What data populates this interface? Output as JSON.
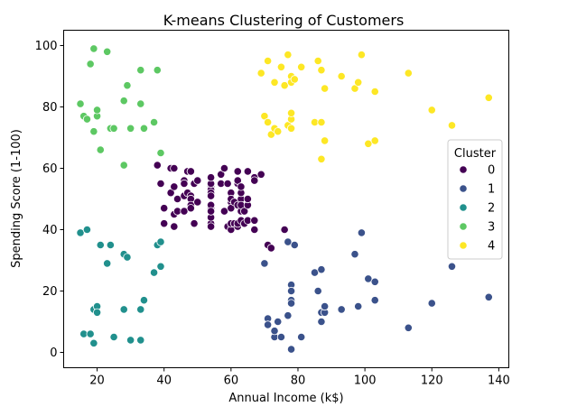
{
  "chart_data": {
    "type": "scatter",
    "title": "K-means Clustering of Customers",
    "xlabel": "Annual Income (k$)",
    "ylabel": "Spending Score (1-100)",
    "xlim": [
      10,
      143
    ],
    "ylim": [
      -5,
      105
    ],
    "xticks": [
      20,
      40,
      60,
      80,
      100,
      120,
      140
    ],
    "yticks": [
      0,
      20,
      40,
      60,
      80,
      100
    ],
    "grid": false,
    "legend": {
      "title": "Cluster",
      "placement": "center-right"
    },
    "series": [
      {
        "name": "0",
        "color": "#440154",
        "points": [
          [
            38,
            61
          ],
          [
            39,
            55
          ],
          [
            40,
            47
          ],
          [
            40,
            42
          ],
          [
            40,
            42
          ],
          [
            42,
            52
          ],
          [
            42,
            60
          ],
          [
            43,
            54
          ],
          [
            43,
            60
          ],
          [
            43,
            45
          ],
          [
            43,
            41
          ],
          [
            44,
            50
          ],
          [
            44,
            46
          ],
          [
            46,
            51
          ],
          [
            46,
            46
          ],
          [
            46,
            56
          ],
          [
            46,
            55
          ],
          [
            47,
            52
          ],
          [
            47,
            59
          ],
          [
            48,
            51
          ],
          [
            48,
            59
          ],
          [
            48,
            50
          ],
          [
            48,
            48
          ],
          [
            48,
            59
          ],
          [
            48,
            47
          ],
          [
            49,
            55
          ],
          [
            49,
            42
          ],
          [
            50,
            49
          ],
          [
            50,
            56
          ],
          [
            54,
            47
          ],
          [
            54,
            54
          ],
          [
            54,
            53
          ],
          [
            54,
            48
          ],
          [
            54,
            52
          ],
          [
            54,
            42
          ],
          [
            54,
            51
          ],
          [
            54,
            55
          ],
          [
            54,
            41
          ],
          [
            54,
            44
          ],
          [
            54,
            57
          ],
          [
            54,
            46
          ],
          [
            57,
            58
          ],
          [
            57,
            55
          ],
          [
            58,
            60
          ],
          [
            58,
            46
          ],
          [
            59,
            55
          ],
          [
            59,
            41
          ],
          [
            60,
            49
          ],
          [
            60,
            40
          ],
          [
            60,
            42
          ],
          [
            60,
            52
          ],
          [
            60,
            47
          ],
          [
            60,
            50
          ],
          [
            61,
            42
          ],
          [
            61,
            49
          ],
          [
            62,
            41
          ],
          [
            62,
            48
          ],
          [
            62,
            59
          ],
          [
            62,
            55
          ],
          [
            62,
            56
          ],
          [
            62,
            42
          ],
          [
            63,
            50
          ],
          [
            63,
            46
          ],
          [
            63,
            43
          ],
          [
            63,
            48
          ],
          [
            63,
            52
          ],
          [
            63,
            54
          ],
          [
            64,
            42
          ],
          [
            64,
            46
          ],
          [
            65,
            48
          ],
          [
            65,
            50
          ],
          [
            65,
            43
          ],
          [
            65,
            59
          ],
          [
            67,
            43
          ],
          [
            67,
            57
          ],
          [
            67,
            56
          ],
          [
            67,
            40
          ],
          [
            69,
            58
          ],
          [
            71,
            35
          ],
          [
            72,
            34
          ],
          [
            76,
            40
          ]
        ]
      },
      {
        "name": "1",
        "color": "#3b528b",
        "points": [
          [
            70,
            29
          ],
          [
            71,
            11
          ],
          [
            71,
            9
          ],
          [
            73,
            5
          ],
          [
            73,
            7
          ],
          [
            74,
            10
          ],
          [
            75,
            5
          ],
          [
            77,
            12
          ],
          [
            77,
            36
          ],
          [
            78,
            22
          ],
          [
            78,
            17
          ],
          [
            78,
            20
          ],
          [
            78,
            16
          ],
          [
            78,
            1
          ],
          [
            79,
            35
          ],
          [
            81,
            5
          ],
          [
            85,
            26
          ],
          [
            86,
            20
          ],
          [
            87,
            27
          ],
          [
            87,
            13
          ],
          [
            87,
            10
          ],
          [
            88,
            13
          ],
          [
            88,
            15
          ],
          [
            93,
            14
          ],
          [
            97,
            32
          ],
          [
            98,
            15
          ],
          [
            99,
            39
          ],
          [
            101,
            24
          ],
          [
            103,
            17
          ],
          [
            103,
            23
          ],
          [
            113,
            8
          ],
          [
            120,
            16
          ],
          [
            126,
            28
          ],
          [
            137,
            18
          ]
        ]
      },
      {
        "name": "2",
        "color": "#21908d",
        "points": [
          [
            15,
            39
          ],
          [
            16,
            6
          ],
          [
            17,
            40
          ],
          [
            18,
            6
          ],
          [
            19,
            3
          ],
          [
            19,
            14
          ],
          [
            20,
            15
          ],
          [
            20,
            13
          ],
          [
            21,
            35
          ],
          [
            23,
            29
          ],
          [
            24,
            35
          ],
          [
            25,
            5
          ],
          [
            28,
            14
          ],
          [
            28,
            32
          ],
          [
            29,
            31
          ],
          [
            30,
            4
          ],
          [
            33,
            4
          ],
          [
            33,
            14
          ],
          [
            34,
            17
          ],
          [
            37,
            26
          ],
          [
            38,
            35
          ],
          [
            39,
            36
          ],
          [
            39,
            28
          ]
        ]
      },
      {
        "name": "3",
        "color": "#5dc863",
        "points": [
          [
            15,
            81
          ],
          [
            16,
            77
          ],
          [
            17,
            76
          ],
          [
            18,
            94
          ],
          [
            19,
            72
          ],
          [
            19,
            99
          ],
          [
            20,
            77
          ],
          [
            20,
            79
          ],
          [
            21,
            66
          ],
          [
            23,
            98
          ],
          [
            24,
            73
          ],
          [
            25,
            73
          ],
          [
            28,
            82
          ],
          [
            28,
            61
          ],
          [
            29,
            87
          ],
          [
            30,
            73
          ],
          [
            33,
            92
          ],
          [
            33,
            81
          ],
          [
            34,
            73
          ],
          [
            37,
            75
          ],
          [
            38,
            92
          ],
          [
            39,
            65
          ]
        ]
      },
      {
        "name": "4",
        "color": "#fde725",
        "points": [
          [
            69,
            91
          ],
          [
            70,
            77
          ],
          [
            71,
            95
          ],
          [
            71,
            75
          ],
          [
            72,
            71
          ],
          [
            73,
            88
          ],
          [
            73,
            73
          ],
          [
            74,
            72
          ],
          [
            75,
            93
          ],
          [
            76,
            87
          ],
          [
            77,
            97
          ],
          [
            77,
            74
          ],
          [
            78,
            90
          ],
          [
            78,
            88
          ],
          [
            78,
            76
          ],
          [
            78,
            78
          ],
          [
            78,
            73
          ],
          [
            79,
            89
          ],
          [
            81,
            93
          ],
          [
            85,
            75
          ],
          [
            86,
            95
          ],
          [
            87,
            63
          ],
          [
            87,
            75
          ],
          [
            87,
            92
          ],
          [
            88,
            86
          ],
          [
            88,
            69
          ],
          [
            93,
            90
          ],
          [
            97,
            86
          ],
          [
            98,
            88
          ],
          [
            99,
            97
          ],
          [
            101,
            68
          ],
          [
            103,
            85
          ],
          [
            103,
            69
          ],
          [
            113,
            91
          ],
          [
            120,
            79
          ],
          [
            126,
            74
          ],
          [
            137,
            83
          ]
        ]
      }
    ]
  }
}
